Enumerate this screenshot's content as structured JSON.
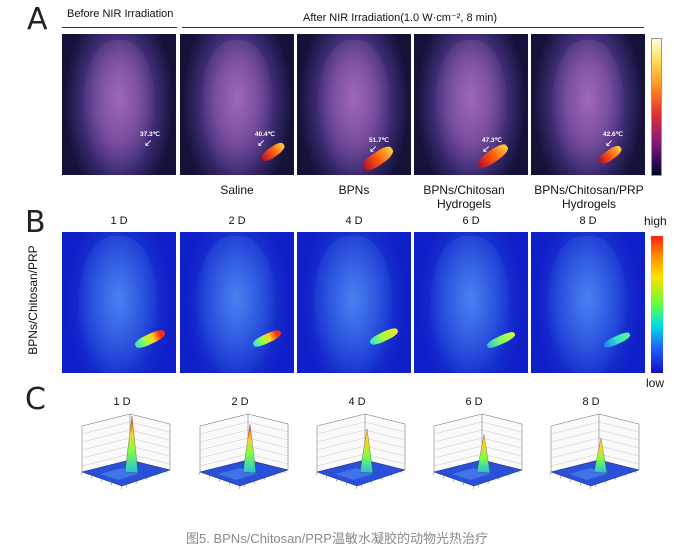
{
  "figure": {
    "caption": "图5. BPNs/Chitosan/PRP温敏水凝胶的动物光热治疗",
    "panel_letters": [
      "A",
      "B",
      "C"
    ]
  },
  "panel_a": {
    "before_label": "Before NIR Irradiation",
    "after_label": "After NIR Irradiation(1.0 W·cm⁻², 8 min)",
    "temperatures": [
      "37.3℃",
      "40.4℃",
      "51.7℃",
      "47.3℃",
      "42.6℃"
    ],
    "captions": [
      "",
      "Saline",
      "BPNs",
      "BPNs/Chitosan Hydrogels",
      "BPNs/Chitosan/PRP Hydrogels"
    ],
    "colorbar": "thermal"
  },
  "panel_b": {
    "ylabel": "BPNs/Chitosan/PRP",
    "days": [
      "1 D",
      "2 D",
      "4 D",
      "6 D",
      "8 D"
    ],
    "colorbar_high": "high",
    "colorbar_low": "low"
  },
  "panel_c": {
    "days": [
      "1 D",
      "2 D",
      "4 D",
      "6 D",
      "8 D"
    ],
    "peak_relative": [
      1.0,
      0.82,
      0.72,
      0.6,
      0.52
    ]
  }
}
